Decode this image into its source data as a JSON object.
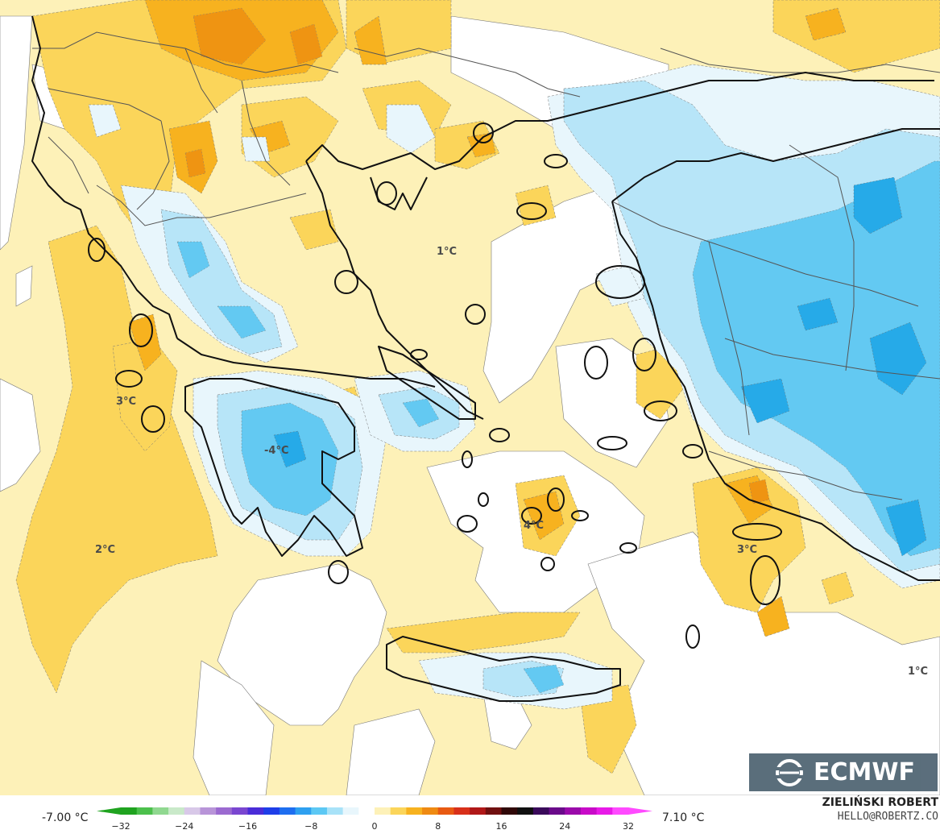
{
  "map": {
    "labels": [
      {
        "id": "label-aegean-north",
        "text": "1°C"
      },
      {
        "id": "label-ionian-islands",
        "text": "3°C"
      },
      {
        "id": "label-peloponnese",
        "text": "-4°C"
      },
      {
        "id": "label-ionian-sea",
        "text": "2°C"
      },
      {
        "id": "label-cyclades",
        "text": "4°C"
      },
      {
        "id": "label-dodecanese",
        "text": "3°C"
      },
      {
        "id": "label-east-mediterranean",
        "text": "1°C"
      }
    ],
    "colors": {
      "warm_light": "#fdf1b8",
      "warm_mid": "#fbd55a",
      "warm_strong": "#f7b21f",
      "warm_deep": "#ef9412",
      "neutral": "#ffffff",
      "cool_light": "#e8f6fc",
      "cool_mid": "#b7e5f8",
      "cool_strong": "#63c9f2",
      "cool_deep": "#26aae8",
      "coast": "#111111",
      "border": "#555555"
    }
  },
  "logo": {
    "text": "ECMWF",
    "icon": "ecmwf-logo-icon"
  },
  "legend": {
    "min_label": "-7.00 °C",
    "max_label": "7.10 °C",
    "ticks": [
      "−32",
      "−24",
      "−16",
      "−8",
      "0",
      "8",
      "16",
      "24",
      "32"
    ],
    "stops": [
      "#1fa31f",
      "#4cc04c",
      "#90d890",
      "#c9e9c9",
      "#d8c8e8",
      "#b894d8",
      "#9b6ad0",
      "#7a46d0",
      "#4a2cd8",
      "#1e3ee8",
      "#1e6ef0",
      "#2ea0f0",
      "#5cc8f4",
      "#a8e2f8",
      "#e8f6fc",
      "#ffffff",
      "#fdf1b8",
      "#fbd55a",
      "#f7b21f",
      "#ef8a12",
      "#e85a12",
      "#d8301a",
      "#b01818",
      "#701010",
      "#300808",
      "#101010",
      "#3a0a5a",
      "#6a0a8a",
      "#9a0aaa",
      "#c80ac8",
      "#e81ae8",
      "#ff4aff"
    ]
  },
  "credit": {
    "name": "ZIELIŃSKI ROBERT",
    "email": "HELLO@ROBERTZ.CO"
  }
}
